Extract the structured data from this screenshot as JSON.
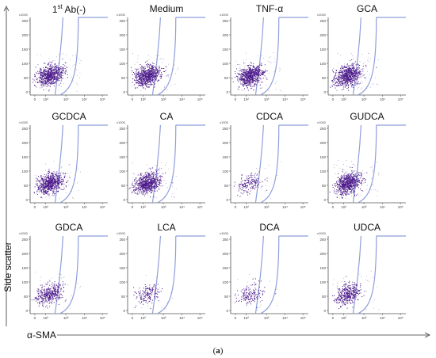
{
  "figure": {
    "xlabel": "α-SMA",
    "ylabel": "Side scatter",
    "caption_open": "(",
    "caption_letter": "a",
    "caption_close": ")",
    "exp_label": "x1000",
    "colors": {
      "dots": "#4b1a8a",
      "gate": "#8f9fdc",
      "axis": "#555555"
    }
  },
  "chart_data": [
    {
      "type": "scatter",
      "title": "1st Ab(-)",
      "title_parts": [
        "1",
        "st",
        " Ab(-)"
      ],
      "xscale": "log",
      "xticks": [
        "0",
        "10²",
        "10³",
        "10⁴",
        "10⁵"
      ],
      "yticks": [
        "0",
        "50",
        "100",
        "150",
        "200",
        "250"
      ],
      "yunit": "x1000",
      "gate": "positive region right of curved gate",
      "density": "high"
    },
    {
      "type": "scatter",
      "title": "Medium",
      "xscale": "log",
      "xticks": [
        "0",
        "10²",
        "10³",
        "10⁴",
        "10⁵"
      ],
      "yticks": [
        "0",
        "50",
        "100",
        "150",
        "200",
        "250"
      ],
      "yunit": "x1000",
      "density": "high"
    },
    {
      "type": "scatter",
      "title": "TNF-α",
      "xscale": "log",
      "xticks": [
        "0",
        "10²",
        "10³",
        "10⁴",
        "10⁵"
      ],
      "yticks": [
        "0",
        "50",
        "100",
        "150",
        "200",
        "250"
      ],
      "yunit": "x1000",
      "density": "high"
    },
    {
      "type": "scatter",
      "title": "GCA",
      "xscale": "log",
      "xticks": [
        "0",
        "10²",
        "10³",
        "10⁴",
        "10⁵"
      ],
      "yticks": [
        "0",
        "50",
        "100",
        "150",
        "200",
        "250"
      ],
      "yunit": "x1000",
      "density": "high"
    },
    {
      "type": "scatter",
      "title": "GCDCA",
      "xscale": "log",
      "xticks": [
        "0",
        "10²",
        "10³",
        "10⁴",
        "10⁵"
      ],
      "yticks": [
        "0",
        "50",
        "100",
        "150",
        "200",
        "250"
      ],
      "yunit": "x1000",
      "density": "high"
    },
    {
      "type": "scatter",
      "title": "CA",
      "xscale": "log",
      "xticks": [
        "0",
        "10²",
        "10³",
        "10⁴",
        "10⁵"
      ],
      "yticks": [
        "0",
        "50",
        "100",
        "150",
        "200",
        "250"
      ],
      "yunit": "x1000",
      "density": "high"
    },
    {
      "type": "scatter",
      "title": "CDCA",
      "xscale": "log",
      "xticks": [
        "0",
        "10²",
        "10³",
        "10⁴",
        "10⁵"
      ],
      "yticks": [
        "0",
        "50",
        "100",
        "150",
        "200",
        "250"
      ],
      "yunit": "x1000",
      "density": "low"
    },
    {
      "type": "scatter",
      "title": "GUDCA",
      "xscale": "log",
      "xticks": [
        "0",
        "10²",
        "10³",
        "10⁴",
        "10⁵"
      ],
      "yticks": [
        "0",
        "50",
        "100",
        "150",
        "200",
        "250"
      ],
      "yunit": "x1000",
      "density": "high"
    },
    {
      "type": "scatter",
      "title": "GDCA",
      "xscale": "log",
      "xticks": [
        "0",
        "10²",
        "10³",
        "10⁴",
        "10⁵"
      ],
      "yticks": [
        "0",
        "50",
        "100",
        "150",
        "200",
        "250"
      ],
      "yunit": "x1000",
      "density": "medium"
    },
    {
      "type": "scatter",
      "title": "LCA",
      "xscale": "log",
      "xticks": [
        "0",
        "10²",
        "10³",
        "10⁴",
        "10⁵"
      ],
      "yticks": [
        "0",
        "50",
        "100",
        "150",
        "200",
        "250"
      ],
      "yunit": "x1000",
      "density": "low"
    },
    {
      "type": "scatter",
      "title": "DCA",
      "xscale": "log",
      "xticks": [
        "0",
        "10²",
        "10³",
        "10⁴",
        "10⁵"
      ],
      "yticks": [
        "0",
        "50",
        "100",
        "150",
        "200",
        "250"
      ],
      "yunit": "x1000",
      "density": "low"
    },
    {
      "type": "scatter",
      "title": "UDCA",
      "xscale": "log",
      "xticks": [
        "0",
        "10²",
        "10³",
        "10⁴",
        "10⁵"
      ],
      "yticks": [
        "0",
        "50",
        "100",
        "150",
        "200",
        "250"
      ],
      "yunit": "x1000",
      "density": "medium"
    }
  ]
}
